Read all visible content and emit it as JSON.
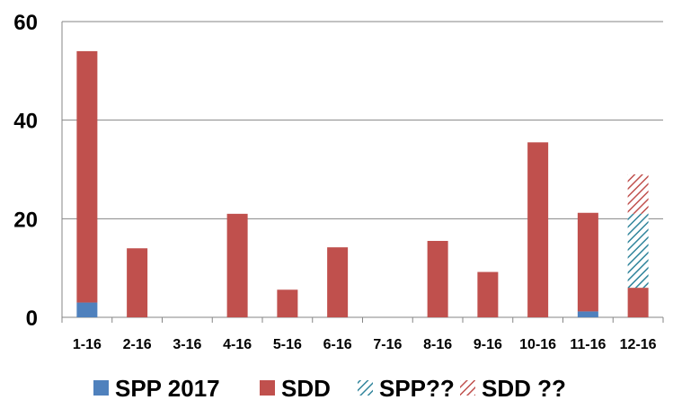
{
  "chart_data": {
    "type": "bar",
    "stacked": true,
    "title": "",
    "xlabel": "",
    "ylabel": "",
    "ylim": [
      0,
      60
    ],
    "yticks": [
      0,
      20,
      40,
      60
    ],
    "grid": "horizontal",
    "legend_position": "bottom",
    "categories": [
      "1-16",
      "2-16",
      "3-16",
      "4-16",
      "5-16",
      "6-16",
      "7-16",
      "8-16",
      "9-16",
      "10-16",
      "11-16",
      "12-16"
    ],
    "series": [
      {
        "name": "SPP 2017",
        "color": "#4f81bd",
        "pattern": "solid",
        "values": [
          3,
          0,
          0,
          0,
          0,
          0,
          0,
          0,
          0,
          0,
          1.2,
          0
        ]
      },
      {
        "name": "SDD",
        "color": "#c0504d",
        "pattern": "solid",
        "values": [
          51,
          14,
          0,
          21,
          5.6,
          14.2,
          0,
          15.5,
          9.2,
          35.5,
          20,
          6
        ]
      },
      {
        "name": "SPP??",
        "color": "#31859c",
        "pattern": "hatch",
        "values": [
          0,
          0,
          0,
          0,
          0,
          0,
          0,
          0,
          0,
          0,
          0,
          15
        ]
      },
      {
        "name": "SDD ??",
        "color": "#c0504d",
        "pattern": "hatch",
        "values": [
          0,
          0,
          0,
          0,
          0,
          0,
          0,
          0,
          0,
          0,
          0,
          8
        ]
      }
    ]
  }
}
